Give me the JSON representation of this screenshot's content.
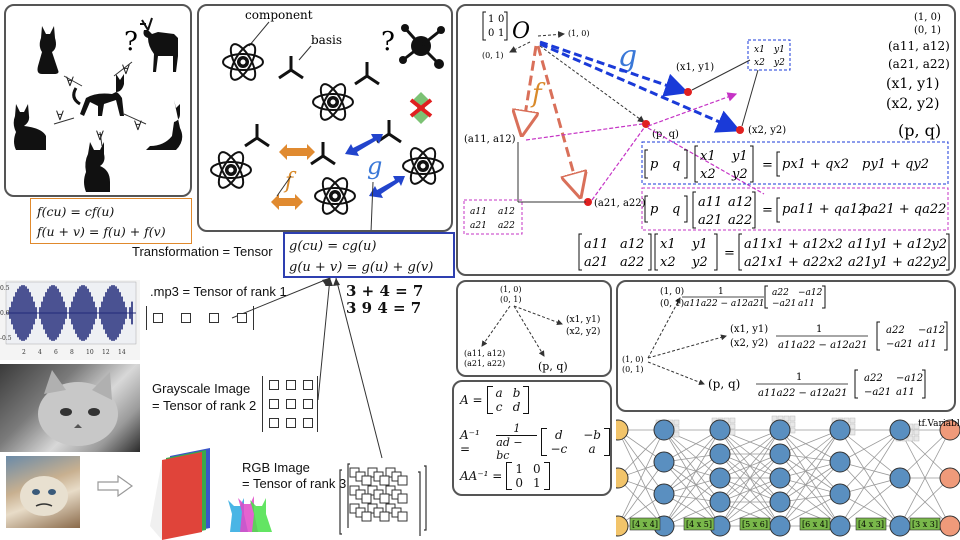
{
  "panel_cats": {
    "question_mark": "?",
    "forall_symbol": "∀"
  },
  "panel_atoms": {
    "component_label": "component",
    "basis_label": "basis",
    "question_mark": "?",
    "f_label": "f",
    "g_label": "g"
  },
  "f_equations": {
    "line1": "f(cu) = cf(u)",
    "line2": "f(u + v) = f(u) + f(v)"
  },
  "g_equations": {
    "line1": "g(cu) = cg(u)",
    "line2": "g(u + v) = g(u) + g(v)"
  },
  "transformation_label": "Transformation = Tensor",
  "additions": {
    "line1": "3 + 4 = 7",
    "line2": "3 9 4 = 7"
  },
  "tensors": {
    "mp3": ".mp3 = Tensor of rank 1",
    "grayscale_1": "Grayscale Image",
    "grayscale_2": "= Tensor of rank 2",
    "rgb_1": "RGB Image",
    "rgb_2": "= Tensor of rank 3"
  },
  "waveform": {
    "y_ticks": [
      "0.5",
      "0.0",
      "-0.5"
    ],
    "x_ticks": [
      "2",
      "4",
      "6",
      "8",
      "10",
      "12",
      "14"
    ]
  },
  "linear_map_diagram": {
    "origin": "O",
    "g_label": "g",
    "f_label": "f",
    "identity_matrix": [
      [
        "1",
        "0"
      ],
      [
        "0",
        "1"
      ]
    ],
    "point_10": "(1, 0)",
    "point_01": "(0, 1)",
    "point_x1y1": "(x1, y1)",
    "point_x2y2": "(x2, y2)",
    "point_pq": "(p, q)",
    "point_a11a12": "(a11, a12)",
    "point_a21a22": "(a21, a22)",
    "matrix_x": [
      [
        "x1",
        "y1"
      ],
      [
        "x2",
        "y2"
      ]
    ],
    "matrix_a": [
      [
        "a11",
        "a12"
      ],
      [
        "a21",
        "a22"
      ]
    ],
    "right_list": [
      "(1, 0)",
      "(0, 1)",
      "(a11, a12)",
      "(a21, a22)",
      "(x1, y1)",
      "(x2, y2)",
      "(p, q)"
    ],
    "row_eq_1": {
      "row": [
        "p",
        "q"
      ],
      "matrix": [
        [
          "x1",
          "y1"
        ],
        [
          "x2",
          "y2"
        ]
      ],
      "result": [
        "px1 + qx2",
        "py1 + qy2"
      ]
    },
    "row_eq_2": {
      "row": [
        "p",
        "q"
      ],
      "matrix": [
        [
          "a11",
          "a12"
        ],
        [
          "a21",
          "a22"
        ]
      ],
      "result": [
        "pa11 + qa12",
        "pa21 + qa22"
      ]
    },
    "product": {
      "left": [
        [
          "a11",
          "a12"
        ],
        [
          "a21",
          "a22"
        ]
      ],
      "right": [
        [
          "x1",
          "y1"
        ],
        [
          "x2",
          "y2"
        ]
      ],
      "result": [
        [
          "a11x1 + a12x2",
          "a11y1 + a12y2"
        ],
        [
          "a21x1 + a22x2",
          "a21y1 + a22y2"
        ]
      ]
    }
  },
  "small_graph": {
    "top": [
      "(1, 0)",
      "(0, 1)"
    ],
    "right": [
      "(x1, y1)",
      "(x2, y2)"
    ],
    "left": [
      "(a11, a12)",
      "(a21, a22)"
    ],
    "bottom": "(p, q)"
  },
  "inverse_panel": {
    "a_lhs": "A =",
    "a_matrix": [
      [
        "a",
        "b"
      ],
      [
        "c",
        "d"
      ]
    ],
    "inv_lhs": "A⁻¹ =",
    "inv_num": "1",
    "inv_den": "ad − bc",
    "inv_matrix": [
      [
        "d",
        "−b"
      ],
      [
        "−c",
        "a"
      ]
    ],
    "prod_lhs": "AA⁻¹ =",
    "prod_matrix": [
      [
        "1",
        "0"
      ],
      [
        "0",
        "1"
      ]
    ]
  },
  "inverse_graph": {
    "node_10_01": [
      "(1, 0)",
      "(0, 1)"
    ],
    "top_lhs": [
      "(1, 0)",
      "(0, 1)"
    ],
    "top_num": "1",
    "top_den": "a11a22 − a12a21",
    "top_matrix": [
      [
        "a22",
        "−a12"
      ],
      [
        "−a21",
        "a11"
      ]
    ],
    "mid_lhs": [
      "(x1, y1)",
      "(x2, y2)"
    ],
    "mid_num": "1",
    "mid_den": "a11a22 − a12a21",
    "mid_matrix": [
      [
        "a22",
        "−a12"
      ],
      [
        "−a21",
        "a11"
      ]
    ],
    "bot_lhs": "(p, q)",
    "bot_num": "1",
    "bot_den": "a11a22 − a12a21",
    "bot_matrix": [
      [
        "a22",
        "−a12"
      ],
      [
        "−a21",
        "a11"
      ]
    ]
  },
  "network": {
    "label": "tf.Variable",
    "shapes": [
      "[4 x 4]",
      "[4 x 5]",
      "[5 x 6]",
      "[6 x 4]",
      "[4 x 3]",
      "[3 x 3]"
    ]
  },
  "colors": {
    "blue_box": "#2e3fb0",
    "orange": "#e0892c",
    "magenta": "#c533c5",
    "g_blue": "#3a78d8",
    "f_orange": "#d98a2a",
    "red_dot": "#e02020",
    "node_blue": "#5a8fc0",
    "node_yellow": "#f2c46a",
    "node_salmon": "#ef9a7a",
    "shape_green": "#79b84a"
  },
  "icons": [
    "cat-icon",
    "deer-icon",
    "atom-icon",
    "basis-icon",
    "molecule-icon",
    "red-cross-icon",
    "cat-photo",
    "grumpy-cat-photo",
    "rgb-stack-icon"
  ]
}
